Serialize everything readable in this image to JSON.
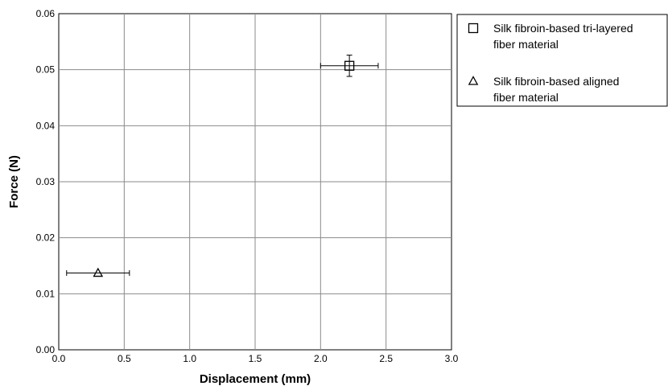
{
  "chart_data": {
    "type": "scatter",
    "title": "",
    "xlabel": "Displacement (mm)",
    "ylabel": "Force (N)",
    "xlim": [
      0,
      3
    ],
    "ylim": [
      0,
      0.06
    ],
    "x_ticks": [
      "0.0",
      "0.5",
      "1.0",
      "1.5",
      "2.0",
      "2.5",
      "3.0"
    ],
    "y_ticks": [
      "0.00",
      "0.01",
      "0.02",
      "0.03",
      "0.04",
      "0.05",
      "0.06"
    ],
    "grid": true,
    "legend_position": "right",
    "series": [
      {
        "name": "Silk fibroin-based tri-layered fiber material",
        "name_lines": [
          "Silk fibroin-based tri-layered",
          "fiber material"
        ],
        "marker": "square",
        "points": [
          {
            "x": 2.22,
            "y": 0.0507,
            "x_err": 0.22,
            "y_err": 0.0019
          }
        ]
      },
      {
        "name": "Silk fibroin-based aligned fiber material",
        "name_lines": [
          "Silk fibroin-based aligned",
          "fiber material"
        ],
        "marker": "triangle",
        "points": [
          {
            "x": 0.3,
            "y": 0.0137,
            "x_err": 0.24,
            "y_err": 0.0
          }
        ]
      }
    ]
  }
}
